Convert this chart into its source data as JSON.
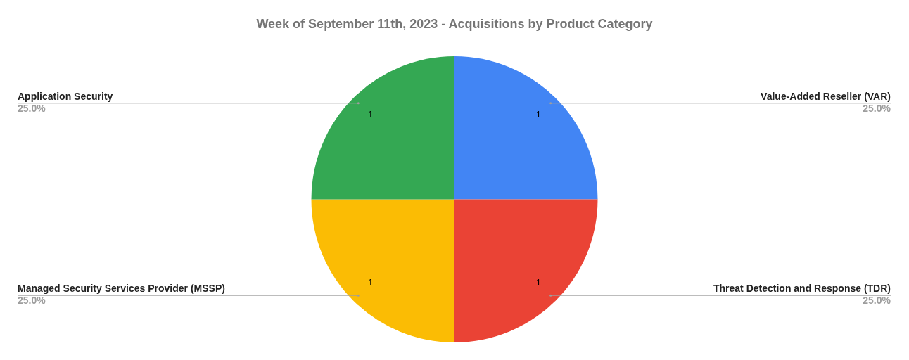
{
  "chart_data": {
    "type": "pie",
    "title": "Week of September 11th, 2023 - Acquisitions by Product Category",
    "categories": [
      "Value-Added Reseller (VAR)",
      "Threat Detection and Response (TDR)",
      "Managed Security Services Provider (MSSP)",
      "Application Security"
    ],
    "values": [
      25,
      25,
      25,
      25
    ],
    "annotations": [
      "1",
      "1",
      "1",
      "1"
    ],
    "colors": [
      "#4285f4",
      "#ea4335",
      "#fbbc04",
      "#34a853"
    ],
    "value_labels": [
      "25.0%",
      "25.0%",
      "25.0%",
      "25.0%"
    ],
    "legend": false
  }
}
